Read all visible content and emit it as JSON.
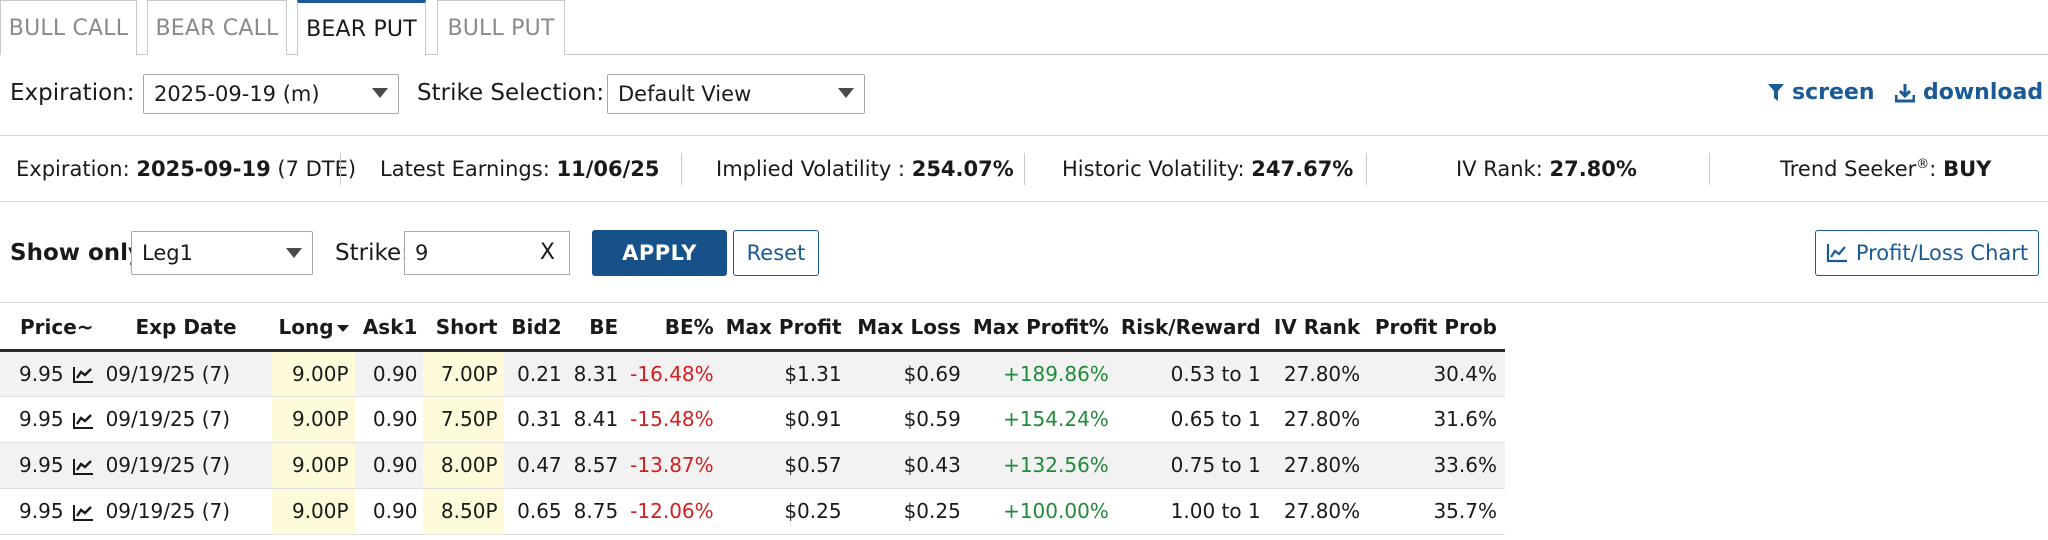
{
  "tabs": [
    {
      "label": "BULL CALL",
      "active": false
    },
    {
      "label": "BEAR CALL",
      "active": false
    },
    {
      "label": "BEAR PUT",
      "active": true
    },
    {
      "label": "BULL PUT",
      "active": false
    }
  ],
  "filters": {
    "expiration_label": "Expiration:",
    "expiration_value": "2025-09-19 (m)",
    "strike_selection_label": "Strike Selection:",
    "strike_selection_value": "Default View",
    "screen_label": "screen",
    "download_label": "download"
  },
  "info": {
    "expiration_label": "Expiration:",
    "expiration_value": "2025-09-19",
    "expiration_dte": "(7 DTE)",
    "earnings_label": "Latest Earnings:",
    "earnings_value": "11/06/25",
    "iv_label": "Implied Volatility :",
    "iv_value": "254.07%",
    "hv_label": "Historic Volatility:",
    "hv_value": "247.67%",
    "ivrank_label": "IV Rank:",
    "ivrank_value": "27.80%",
    "trend_label": "Trend Seeker",
    "trend_reg": "®",
    "trend_colon": ":",
    "trend_value": "BUY"
  },
  "controls": {
    "show_only_label": "Show only:",
    "show_only_value": "Leg1",
    "strike_label": "Strike:",
    "strike_value": "9",
    "clear_label": "X",
    "apply_label": "APPLY",
    "reset_label": "Reset",
    "pl_chart_label": "Profit/Loss Chart"
  },
  "table": {
    "headers": [
      "Price~",
      "Exp Date",
      "Long",
      "Ask1",
      "Short",
      "Bid2",
      "BE",
      "BE%",
      "Max Profit",
      "Max Loss",
      "Max Profit%",
      "Risk/Reward",
      "IV Rank",
      "Profit Prob"
    ],
    "rows": [
      {
        "price": "9.95",
        "exp": "09/19/25 (7)",
        "long": "9.00P",
        "ask1": "0.90",
        "short": "7.00P",
        "bid2": "0.21",
        "be": "8.31",
        "be_pct": "-16.48%",
        "max_profit": "$1.31",
        "max_loss": "$0.69",
        "max_profit_pct": "+189.86%",
        "risk_reward": "0.53 to 1",
        "iv_rank": "27.80%",
        "profit_prob": "30.4%"
      },
      {
        "price": "9.95",
        "exp": "09/19/25 (7)",
        "long": "9.00P",
        "ask1": "0.90",
        "short": "7.50P",
        "bid2": "0.31",
        "be": "8.41",
        "be_pct": "-15.48%",
        "max_profit": "$0.91",
        "max_loss": "$0.59",
        "max_profit_pct": "+154.24%",
        "risk_reward": "0.65 to 1",
        "iv_rank": "27.80%",
        "profit_prob": "31.6%"
      },
      {
        "price": "9.95",
        "exp": "09/19/25 (7)",
        "long": "9.00P",
        "ask1": "0.90",
        "short": "8.00P",
        "bid2": "0.47",
        "be": "8.57",
        "be_pct": "-13.87%",
        "max_profit": "$0.57",
        "max_loss": "$0.43",
        "max_profit_pct": "+132.56%",
        "risk_reward": "0.75 to 1",
        "iv_rank": "27.80%",
        "profit_prob": "33.6%"
      },
      {
        "price": "9.95",
        "exp": "09/19/25 (7)",
        "long": "9.00P",
        "ask1": "0.90",
        "short": "8.50P",
        "bid2": "0.65",
        "be": "8.75",
        "be_pct": "-12.06%",
        "max_profit": "$0.25",
        "max_loss": "$0.25",
        "max_profit_pct": "+100.00%",
        "risk_reward": "1.00 to 1",
        "iv_rank": "27.80%",
        "profit_prob": "35.7%"
      }
    ]
  },
  "colors": {
    "accent": "#1a5a96",
    "apply_bg": "#17518a",
    "negative": "#d21f1f",
    "positive": "#1f8a3a",
    "highlight": "#fdfbd9"
  },
  "icons": {
    "screen": "filter-icon",
    "download": "download-icon",
    "pl_chart": "line-chart-icon",
    "row_chart": "line-chart-icon"
  }
}
